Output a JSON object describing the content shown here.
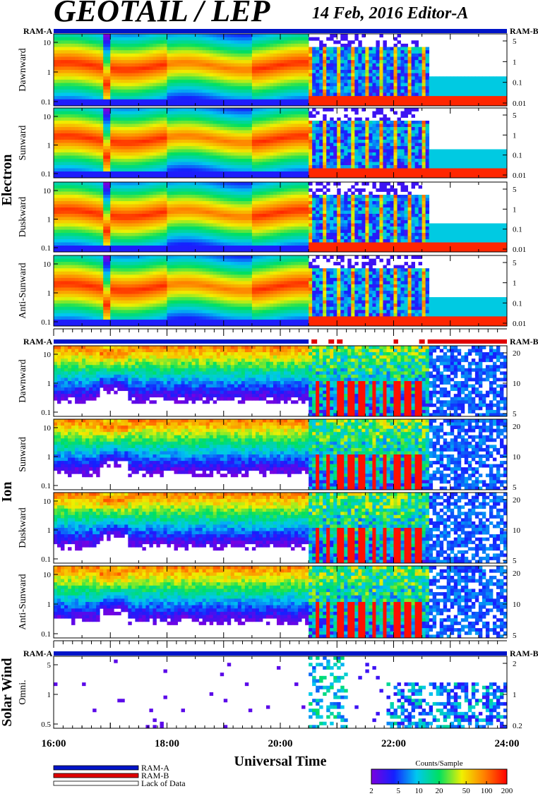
{
  "header": {
    "title": "GEOTAIL / LEP",
    "date_editor": "14 Feb, 2016   Editor-A"
  },
  "groups": [
    {
      "name": "Electron"
    },
    {
      "name": "Ion"
    },
    {
      "name": "Solar Wind"
    }
  ],
  "ram_labels": {
    "a": "RAM-A",
    "b": "RAM-B"
  },
  "x_axis": {
    "title": "Universal Time",
    "ticks": [
      "16:00",
      "18:00",
      "20:00",
      "22:00",
      "24:00"
    ],
    "range_hours": [
      16,
      24
    ]
  },
  "legend": {
    "items": [
      {
        "label": "RAM-A",
        "color": "#0014c8"
      },
      {
        "label": "RAM-B",
        "color": "#e00000"
      },
      {
        "label": "Lack of Data",
        "color": "#ffffff"
      }
    ]
  },
  "colorbar": {
    "title": "Counts/Sample",
    "ticks": [
      "2",
      "5",
      "10",
      "20",
      "50",
      "100",
      "200"
    ],
    "range": [
      2,
      200
    ],
    "scale": "log",
    "colors": [
      "#7a00e0",
      "#1420ff",
      "#00c8f0",
      "#00e060",
      "#f0f000",
      "#ff8000",
      "#ff0000"
    ]
  },
  "chart_data": {
    "type": "heatmap",
    "title": "GEOTAIL / LEP",
    "xlabel": "Universal Time",
    "x_range": [
      "16:00",
      "24:00"
    ],
    "zlabel": "Counts/Sample",
    "z_range": [
      2,
      200
    ],
    "panels": [
      {
        "group": "Electron",
        "name": "Dawnward",
        "left_ticks": [
          "10",
          "1",
          "0.1"
        ],
        "right_ticks": [
          "5",
          "1",
          "0.1",
          "0.01"
        ]
      },
      {
        "group": "Electron",
        "name": "Sunward",
        "left_ticks": [
          "10",
          "1",
          "0.1"
        ],
        "right_ticks": [
          "5",
          "1",
          "0.1",
          "0.01"
        ]
      },
      {
        "group": "Electron",
        "name": "Duskward",
        "left_ticks": [
          "10",
          "1",
          "0.1"
        ],
        "right_ticks": [
          "5",
          "1",
          "0.1",
          "0.01"
        ]
      },
      {
        "group": "Electron",
        "name": "Anti-Sunward",
        "left_ticks": [
          "10",
          "1",
          "0.1"
        ],
        "right_ticks": [
          "5",
          "1",
          "0.1",
          "0.01"
        ]
      },
      {
        "group": "Ion",
        "name": "Dawnward",
        "left_ticks": [
          "10",
          "1",
          "0.1"
        ],
        "right_ticks": [
          "20",
          "10",
          "5"
        ]
      },
      {
        "group": "Ion",
        "name": "Sunward",
        "left_ticks": [
          "10",
          "1",
          "0.1"
        ],
        "right_ticks": [
          "20",
          "10",
          "5"
        ]
      },
      {
        "group": "Ion",
        "name": "Duskward",
        "left_ticks": [
          "10",
          "1",
          "0.1"
        ],
        "right_ticks": [
          "20",
          "10",
          "5"
        ]
      },
      {
        "group": "Ion",
        "name": "Anti-Sunward",
        "left_ticks": [
          "10",
          "1",
          "0.1"
        ],
        "right_ticks": [
          "20",
          "10",
          "5"
        ]
      },
      {
        "group": "Solar Wind",
        "name": "Omni.",
        "left_ticks": [
          "5",
          "1",
          "0.5"
        ],
        "right_ticks": [
          "2",
          "1",
          "0.2"
        ]
      }
    ],
    "ram_segments_hours": {
      "electron": [
        {
          "mode": "RAM-A",
          "from": 16,
          "to": 24
        }
      ],
      "ion": [
        {
          "mode": "RAM-A",
          "from": 16,
          "to": 20.5
        },
        {
          "mode": "RAM-B",
          "from": 20.55,
          "to": 20.65
        },
        {
          "mode": "RAM-B",
          "from": 20.85,
          "to": 20.95
        },
        {
          "mode": "RAM-B",
          "from": 21.0,
          "to": 21.1
        },
        {
          "mode": "RAM-B",
          "from": 22.0,
          "to": 22.08
        },
        {
          "mode": "RAM-B",
          "from": 22.45,
          "to": 22.55
        },
        {
          "mode": "RAM-B",
          "from": 22.6,
          "to": 24
        }
      ],
      "solar_wind": [
        {
          "mode": "RAM-A",
          "from": 16,
          "to": 24
        }
      ]
    }
  }
}
